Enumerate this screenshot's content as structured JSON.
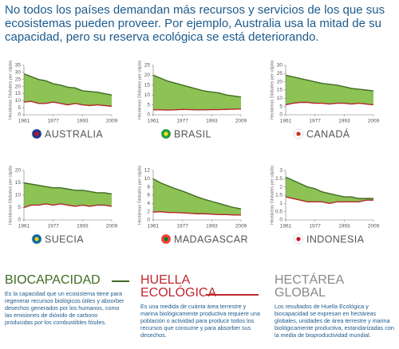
{
  "intro": "No todos los países demandan más recursos y servicios de los que sus ecosistemas pueden proveer. Por ejemplo, Australia usa la mitad de su capacidad, pero su reserva ecológica se está deteriorando.",
  "chart_data": [
    {
      "type": "area",
      "title": "AUSTRALIA",
      "y_label": "Hectáreas Globales per cápita",
      "x": [
        1961,
        1965,
        1969,
        1973,
        1977,
        1981,
        1985,
        1989,
        1993,
        1997,
        2001,
        2005,
        2009
      ],
      "xlim": [
        1961,
        2009
      ],
      "xticks": [
        1961,
        1977,
        1993,
        2009
      ],
      "ylim": [
        0,
        35
      ],
      "yticks": [
        0,
        5,
        10,
        15,
        20,
        25,
        30,
        35
      ],
      "grid": false,
      "series": [
        {
          "color": "#3f6b22",
          "values": [
            29,
            27,
            25,
            24,
            22,
            21,
            19.5,
            19,
            17,
            16.5,
            16,
            15,
            14
          ]
        },
        {
          "color": "#b3262b",
          "values": [
            9,
            9.5,
            8,
            8,
            9,
            8,
            7,
            8,
            7,
            6.5,
            7,
            6.5,
            6
          ]
        }
      ]
    },
    {
      "type": "area",
      "title": "BRASIL",
      "y_label": "Hectáreas Globales per cápita",
      "x": [
        1961,
        1965,
        1969,
        1973,
        1977,
        1981,
        1985,
        1989,
        1993,
        1997,
        2001,
        2005,
        2009
      ],
      "xlim": [
        1961,
        2009
      ],
      "xticks": [
        1961,
        1977,
        1993,
        2009
      ],
      "ylim": [
        0,
        25
      ],
      "yticks": [
        0,
        5,
        10,
        15,
        20,
        25
      ],
      "grid": false,
      "series": [
        {
          "color": "#3f6b22",
          "values": [
            20,
            18.5,
            17,
            16,
            15,
            14,
            13,
            12,
            11.5,
            11,
            10,
            9.5,
            9
          ]
        },
        {
          "color": "#b3262b",
          "values": [
            2.5,
            2.5,
            2.4,
            2.5,
            2.7,
            2.6,
            2.5,
            2.5,
            2.6,
            2.6,
            2.7,
            2.8,
            2.9
          ]
        }
      ]
    },
    {
      "type": "area",
      "title": "CANADÁ",
      "y_label": "Hectáreas Globales per cápita",
      "x": [
        1961,
        1965,
        1969,
        1973,
        1977,
        1981,
        1985,
        1989,
        1993,
        1997,
        2001,
        2005,
        2009
      ],
      "xlim": [
        1961,
        2009
      ],
      "xticks": [
        1961,
        1977,
        1993,
        2009
      ],
      "ylim": [
        0,
        30
      ],
      "yticks": [
        0,
        5,
        10,
        15,
        20,
        25,
        30
      ],
      "grid": false,
      "series": [
        {
          "color": "#3f6b22",
          "values": [
            24,
            23,
            22,
            21,
            20,
            19,
            18.5,
            18,
            17,
            16,
            15.5,
            15,
            14.5
          ]
        },
        {
          "color": "#b3262b",
          "values": [
            6,
            7,
            7.5,
            7.5,
            7,
            7,
            6.5,
            7,
            7,
            6.5,
            7,
            6.5,
            6
          ]
        }
      ]
    },
    {
      "type": "area",
      "title": "SUECIA",
      "y_label": "Hectáreas Globales per cápita",
      "x": [
        1961,
        1965,
        1969,
        1973,
        1977,
        1981,
        1985,
        1989,
        1993,
        1997,
        2001,
        2005,
        2009
      ],
      "xlim": [
        1961,
        2009
      ],
      "xticks": [
        1961,
        1977,
        1993,
        2009
      ],
      "ylim": [
        0,
        20
      ],
      "yticks": [
        0,
        5,
        10,
        15,
        20
      ],
      "grid": false,
      "series": [
        {
          "color": "#3f6b22",
          "values": [
            15,
            14.5,
            14,
            13.5,
            13,
            13,
            12.5,
            12,
            12,
            11.5,
            11,
            11,
            10.5
          ]
        },
        {
          "color": "#b3262b",
          "values": [
            5,
            6,
            6,
            6.5,
            6,
            6.5,
            6,
            5.5,
            6,
            5.5,
            6,
            6,
            5.5
          ]
        }
      ]
    },
    {
      "type": "area",
      "title": "MADAGASCAR",
      "y_label": "Hectáreas Globales per cápita",
      "x": [
        1961,
        1965,
        1969,
        1973,
        1977,
        1981,
        1985,
        1989,
        1993,
        1997,
        2001,
        2005,
        2009
      ],
      "xlim": [
        1961,
        2009
      ],
      "xticks": [
        1961,
        1977,
        1993,
        2009
      ],
      "ylim": [
        0,
        12
      ],
      "yticks": [
        0,
        2,
        4,
        6,
        8,
        10,
        12
      ],
      "grid": false,
      "series": [
        {
          "color": "#3f6b22",
          "values": [
            10,
            9,
            8.3,
            7.6,
            7,
            6.3,
            5.6,
            5,
            4.5,
            4,
            3.5,
            3,
            2.7
          ]
        },
        {
          "color": "#b3262b",
          "values": [
            1.9,
            2,
            1.8,
            1.8,
            1.7,
            1.6,
            1.5,
            1.5,
            1.4,
            1.3,
            1.3,
            1.2,
            1.2
          ]
        }
      ]
    },
    {
      "type": "area",
      "title": "INDONESIA",
      "y_label": "Hectáreas Globales per cápita",
      "x": [
        1961,
        1965,
        1969,
        1973,
        1977,
        1981,
        1985,
        1989,
        1993,
        1997,
        2001,
        2005,
        2009
      ],
      "xlim": [
        1961,
        2009
      ],
      "xticks": [
        1961,
        1977,
        1993,
        2009
      ],
      "ylim": [
        0,
        3
      ],
      "yticks": [
        0,
        0.5,
        1,
        1.5,
        2,
        2.5,
        3
      ],
      "grid": false,
      "series": [
        {
          "color": "#3f6b22",
          "values": [
            2.6,
            2.4,
            2.2,
            2.0,
            1.9,
            1.7,
            1.6,
            1.5,
            1.4,
            1.4,
            1.3,
            1.3,
            1.3
          ]
        },
        {
          "color": "#b3262b",
          "values": [
            1.4,
            1.3,
            1.2,
            1.1,
            1.1,
            1.1,
            1.0,
            1.1,
            1.1,
            1.1,
            1.1,
            1.2,
            1.2
          ]
        }
      ]
    }
  ],
  "definitions": [
    {
      "title": "BIOCAPACIDAD",
      "text": "Es la capacidad que un ecosistema tiene para regenerar recursos biológicos útiles y absorber desechos generados por los humanos, como las emisiones de dióxido de carbono producidas por los combustibles fósiles."
    },
    {
      "title": "HUELLA ECOLÓGICA",
      "text": "Es una medida de cuánta área terrestre y marina biológicamente productiva requiere una población o actividad para producir todos los recursos que consume y para absorber sus desechos."
    },
    {
      "title": "HECTÁREA GLOBAL",
      "text": "Los resultados de Huella Ecológica y biocapacidad se expresan en hectáreas globales, unidades de área terrestre y marina biológicamente productiva, estandarizadas con la media de bioproductividad mundial."
    }
  ]
}
